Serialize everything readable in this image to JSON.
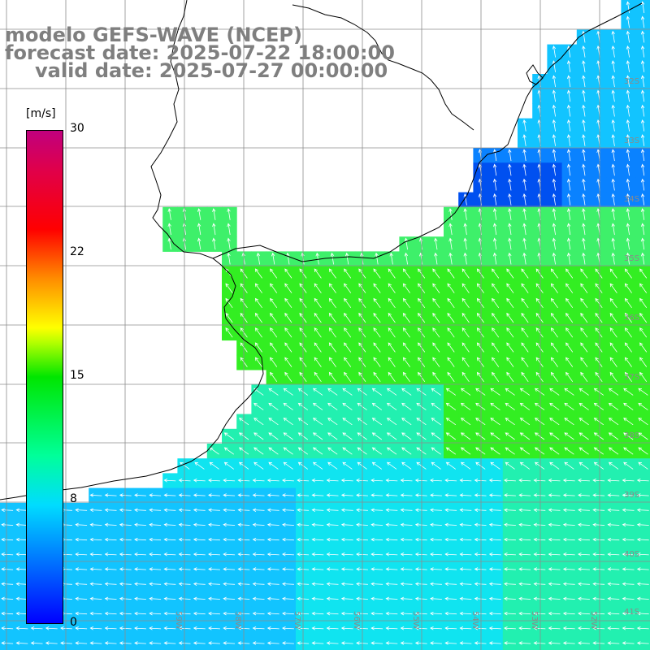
{
  "title": {
    "line1": "modelo GEFS-WAVE (NCEP)",
    "line2": "forecast date: 2025-07-22 18:00:00",
    "line3": "valid date: 2025-07-27 00:00:00"
  },
  "colorbar": {
    "unit": "[m/s]",
    "ticks": [
      {
        "label": "30",
        "value": 30
      },
      {
        "label": "22",
        "value": 22
      },
      {
        "label": "15",
        "value": 15
      },
      {
        "label": "8",
        "value": 8
      },
      {
        "label": "0",
        "value": 0
      }
    ],
    "colors": [
      "#0000ff",
      "#00dcff",
      "#00ff9a",
      "#00e600",
      "#ffff00",
      "#ff0000",
      "#c0007e"
    ]
  },
  "lat_labels": [
    {
      "label": "32S"
    },
    {
      "label": "33S"
    },
    {
      "label": "34S"
    },
    {
      "label": "35S"
    },
    {
      "label": "36S"
    },
    {
      "label": "37S"
    },
    {
      "label": "38S"
    },
    {
      "label": "39S"
    },
    {
      "label": "40S"
    },
    {
      "label": "41S"
    }
  ],
  "lon_labels": [
    {
      "label": "59W"
    },
    {
      "label": "58W"
    },
    {
      "label": "57W"
    },
    {
      "label": "56W"
    },
    {
      "label": "55W"
    },
    {
      "label": "54W"
    },
    {
      "label": "53W"
    },
    {
      "label": "52W"
    }
  ],
  "field_colors": {
    "green": "#33ee22",
    "light_green": "#3ef06a",
    "cyan_green": "#22f0b0",
    "cyan": "#10e4f0",
    "light_blue": "#12c4ff",
    "blue": "#0a82ff",
    "deep_blue": "#0050f0"
  }
}
